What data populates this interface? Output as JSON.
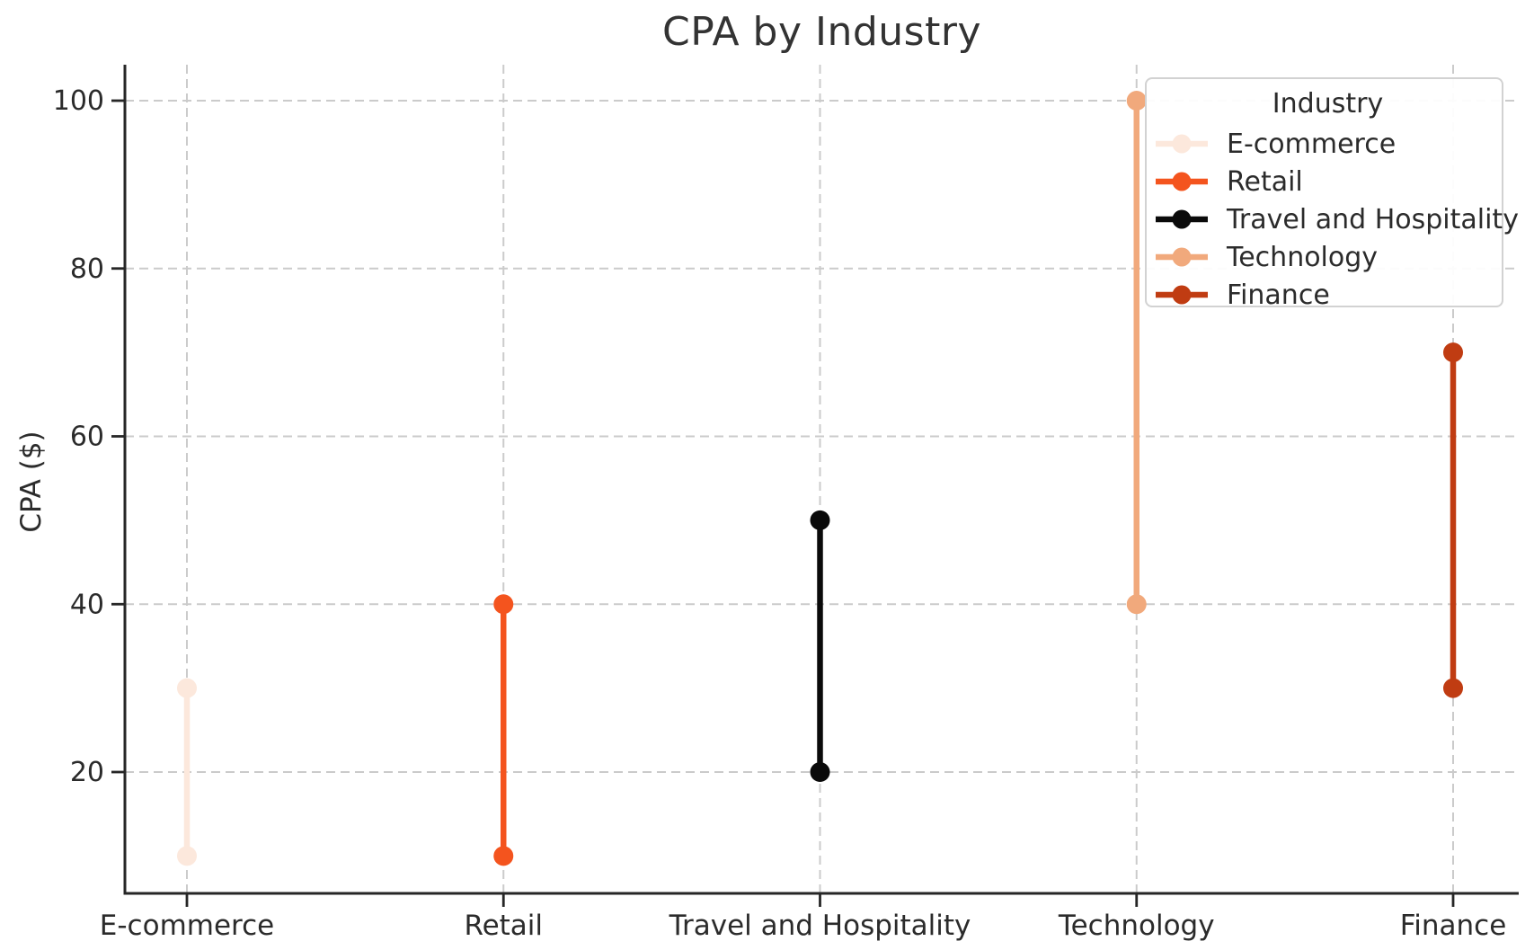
{
  "chart_data": {
    "type": "dumbbell",
    "title": "CPA by Industry",
    "xlabel": "",
    "ylabel": "CPA ($)",
    "categories": [
      "E-commerce",
      "Retail",
      "Travel and Hospitality",
      "Technology",
      "Finance"
    ],
    "series": [
      {
        "name": "E-commerce",
        "min": 10,
        "max": 30,
        "color": "#fce8dc"
      },
      {
        "name": "Retail",
        "min": 10,
        "max": 40,
        "color": "#f4541e"
      },
      {
        "name": "Travel and Hospitality",
        "min": 20,
        "max": 50,
        "color": "#0a0a0a"
      },
      {
        "name": "Technology",
        "min": 40,
        "max": 100,
        "color": "#f1a97c"
      },
      {
        "name": "Finance",
        "min": 30,
        "max": 70,
        "color": "#c03c12"
      }
    ],
    "yticks": [
      20,
      40,
      60,
      80,
      100
    ],
    "ylim": [
      5.5,
      104.5
    ],
    "grid": "dashed-both-axes",
    "legend": {
      "title": "Industry",
      "position": "upper-right",
      "entries": [
        "E-commerce",
        "Retail",
        "Travel and Hospitality",
        "Technology",
        "Finance"
      ]
    }
  },
  "colors": {
    "text": "#2b2b2b",
    "title_text": "#333333",
    "grid": "#cbcbcb",
    "spine": "#262626",
    "legend_border": "#d2d2d2",
    "background": "#ffffff"
  }
}
